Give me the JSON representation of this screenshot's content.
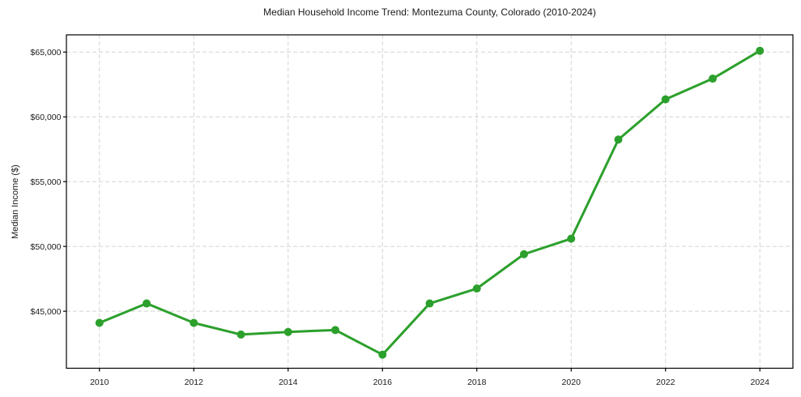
{
  "chart_data": {
    "type": "line",
    "title": "Median Household Income Trend: Montezuma County, Colorado (2010-2024)",
    "ylabel": "Median Income ($)",
    "xlabel": "",
    "x": [
      2010,
      2011,
      2012,
      2013,
      2014,
      2015,
      2016,
      2017,
      2018,
      2019,
      2020,
      2021,
      2022,
      2023,
      2024
    ],
    "series": [
      {
        "name": "Median Household Income",
        "values": [
          44100,
          45600,
          44100,
          43200,
          43400,
          43550,
          41650,
          45600,
          46750,
          49400,
          50600,
          58250,
          61350,
          62950,
          65100
        ]
      }
    ],
    "xticks": [
      2010,
      2012,
      2014,
      2016,
      2018,
      2020,
      2022,
      2024
    ],
    "xtick_labels": [
      "2010",
      "2012",
      "2014",
      "2016",
      "2018",
      "2020",
      "2022",
      "2024"
    ],
    "yticks": [
      45000,
      50000,
      55000,
      60000,
      65000
    ],
    "ytick_labels": [
      "$45,000",
      "$50,000",
      "$55,000",
      "$60,000",
      "$65,000"
    ],
    "xlim": [
      2009.3,
      2024.7
    ],
    "ylim": [
      40600,
      66330
    ],
    "grid": true,
    "grid_style": "dashed",
    "legend": "none",
    "marker": "circle"
  },
  "colors": {
    "line": "#2ca02c",
    "marker": "#2ca02c",
    "grid": "#d4d4d4",
    "axis": "#000000",
    "text": "#1a1a1a",
    "background": "#ffffff"
  }
}
